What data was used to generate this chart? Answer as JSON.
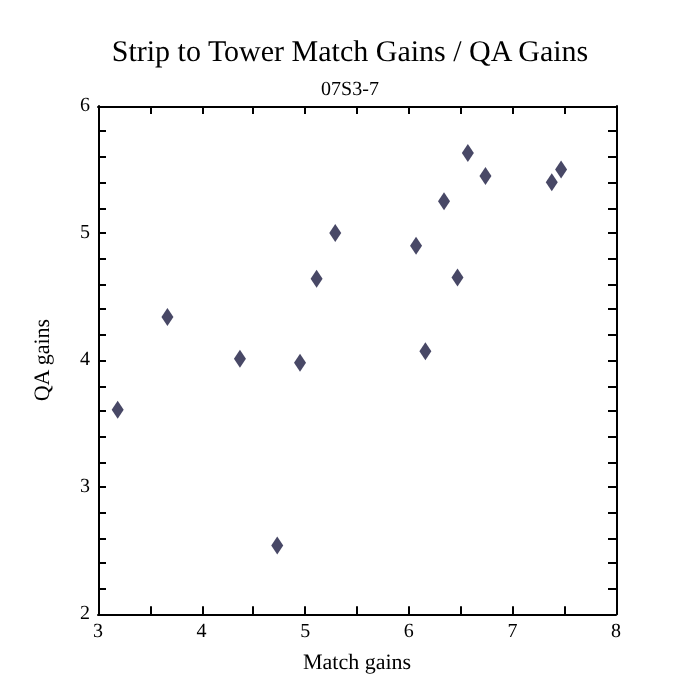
{
  "chart_data": {
    "type": "scatter",
    "title": "Strip to Tower Match Gains / QA Gains",
    "subtitle": "07S3-7",
    "xlabel": "Match gains",
    "ylabel": "QA gains",
    "x": [
      3.19,
      3.67,
      4.37,
      4.73,
      4.95,
      5.11,
      5.29,
      6.07,
      6.16,
      6.34,
      6.47,
      6.57,
      6.74,
      7.38,
      7.47
    ],
    "series": [
      {
        "color": "#1a1a40",
        "values": [
          3.61,
          4.34,
          4.01,
          2.54,
          3.98,
          4.64,
          5.0,
          4.9,
          4.07,
          5.25,
          4.65,
          5.63,
          5.45,
          5.4,
          5.5
        ]
      }
    ],
    "xlim": [
      3,
      8
    ],
    "ylim": [
      2,
      6
    ],
    "xticks": [
      3,
      {
        "value": 3.5,
        "label": null
      },
      4,
      {
        "value": 4.5,
        "label": null
      },
      5,
      {
        "value": 5.5,
        "label": null
      },
      6,
      {
        "value": 6.5,
        "label": null
      },
      7,
      {
        "value": 7.5,
        "label": null
      },
      8
    ],
    "yticks": [
      2,
      {
        "value": 2.2,
        "label": null
      },
      {
        "value": 2.4,
        "label": null
      },
      {
        "value": 2.6,
        "label": null
      },
      {
        "value": 2.8,
        "label": null
      },
      3,
      {
        "value": 3.2,
        "label": null
      },
      {
        "value": 3.4,
        "label": null
      },
      {
        "value": 3.6,
        "label": null
      },
      {
        "value": 3.8,
        "label": null
      },
      4,
      {
        "value": 4.2,
        "label": null
      },
      {
        "value": 4.4,
        "label": null
      },
      {
        "value": 4.6,
        "label": null
      },
      {
        "value": 4.8,
        "label": null
      },
      5,
      {
        "value": 5.2,
        "label": null
      },
      {
        "value": 5.4,
        "label": null
      },
      {
        "value": 5.6,
        "label": null
      },
      {
        "value": 5.8,
        "label": null
      },
      6
    ],
    "marker": "diamond",
    "grid": false
  }
}
